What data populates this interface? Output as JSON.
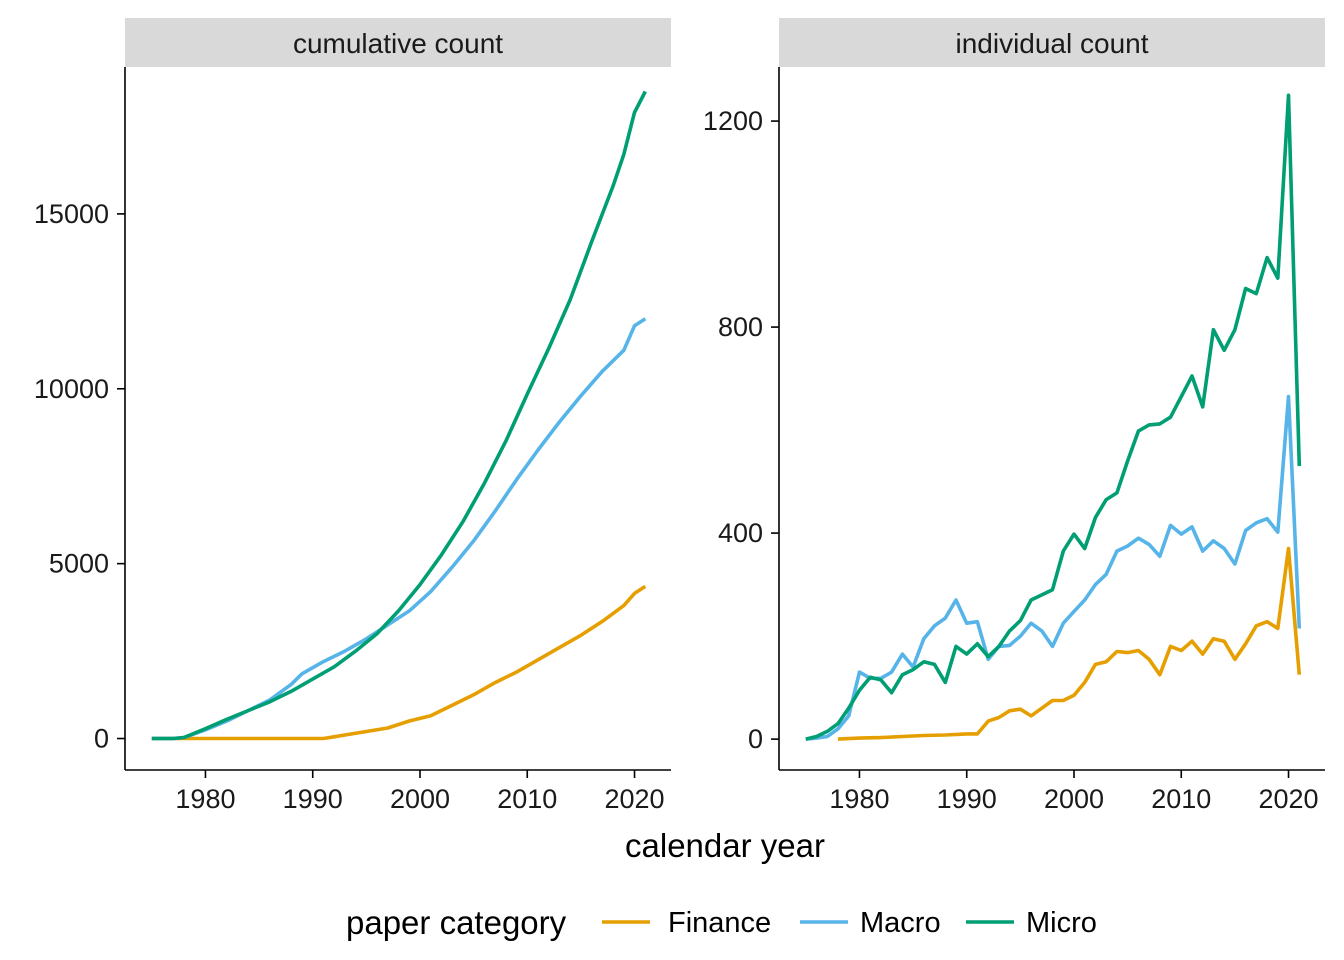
{
  "chart_data": {
    "type": "line",
    "xlabel": "calendar year",
    "legend": {
      "title": "paper category",
      "position": "bottom",
      "entries": [
        {
          "name": "Finance",
          "color": "#E69F00"
        },
        {
          "name": "Macro",
          "color": "#56B4E9"
        },
        {
          "name": "Micro",
          "color": "#009E73"
        }
      ]
    },
    "grid": false,
    "panels": [
      {
        "strip": "cumulative count",
        "xlim": [
          1972.5,
          2023.4
        ],
        "ylim": [
          -900,
          19200
        ],
        "x_ticks": [
          1980,
          1990,
          2000,
          2010,
          2020
        ],
        "y_ticks": [
          0,
          5000,
          10000,
          15000
        ],
        "series": [
          {
            "name": "Finance",
            "color": "#E69F00",
            "x": [
              1975,
              1978,
              1991,
              1992,
              1993,
              1995,
              1997,
              1999,
              2001,
              2003,
              2005,
              2007,
              2009,
              2011,
              2013,
              2015,
              2017,
              2019,
              2020,
              2021
            ],
            "y": [
              0,
              0,
              0,
              50,
              100,
              200,
              300,
              500,
              650,
              950,
              1250,
              1600,
              1900,
              2250,
              2600,
              2950,
              3350,
              3800,
              4150,
              4350
            ]
          },
          {
            "name": "Macro",
            "color": "#56B4E9",
            "x": [
              1975,
              1977,
              1978,
              1980,
              1982,
              1984,
              1986,
              1988,
              1989,
              1991,
              1993,
              1995,
              1997,
              1999,
              2001,
              2003,
              2005,
              2007,
              2009,
              2011,
              2013,
              2015,
              2017,
              2019,
              2020,
              2021
            ],
            "y": [
              0,
              0,
              30,
              250,
              500,
              800,
              1100,
              1550,
              1850,
              2200,
              2500,
              2850,
              3250,
              3650,
              4200,
              4900,
              5650,
              6500,
              7400,
              8250,
              9050,
              9800,
              10500,
              11100,
              11800,
              12000
            ]
          },
          {
            "name": "Micro",
            "color": "#009E73",
            "x": [
              1975,
              1977,
              1978,
              1980,
              1982,
              1984,
              1986,
              1988,
              1990,
              1992,
              1994,
              1996,
              1998,
              2000,
              2002,
              2004,
              2006,
              2008,
              2010,
              2012,
              2014,
              2016,
              2018,
              2019,
              2020,
              2021
            ],
            "y": [
              0,
              0,
              30,
              280,
              550,
              800,
              1050,
              1350,
              1700,
              2050,
              2500,
              3000,
              3650,
              4400,
              5250,
              6200,
              7300,
              8500,
              9850,
              11150,
              12550,
              14200,
              15800,
              16700,
              17900,
              18500
            ]
          }
        ]
      },
      {
        "strip": "individual count",
        "xlim": [
          1972.5,
          2023.4
        ],
        "ylim": [
          -60,
          1305
        ],
        "x_ticks": [
          1980,
          1990,
          2000,
          2010,
          2020
        ],
        "y_ticks": [
          0,
          400,
          800,
          1200
        ],
        "series": [
          {
            "name": "Finance",
            "color": "#E69F00",
            "x": [
              1978,
              1980,
              1982,
              1984,
              1986,
              1988,
              1990,
              1991,
              1992,
              1993,
              1994,
              1995,
              1996,
              1997,
              1998,
              1999,
              2000,
              2001,
              2002,
              2003,
              2004,
              2005,
              2006,
              2007,
              2008,
              2009,
              2010,
              2011,
              2012,
              2013,
              2014,
              2015,
              2016,
              2017,
              2018,
              2019,
              2020,
              2021
            ],
            "y": [
              0,
              2,
              3,
              5,
              7,
              8,
              10,
              10,
              35,
              42,
              55,
              58,
              45,
              60,
              75,
              75,
              85,
              110,
              145,
              150,
              170,
              168,
              172,
              155,
              125,
              180,
              172,
              190,
              165,
              195,
              190,
              155,
              185,
              220,
              228,
              215,
              370,
              125
            ]
          },
          {
            "name": "Macro",
            "color": "#56B4E9",
            "x": [
              1975,
              1976,
              1977,
              1978,
              1979,
              1980,
              1981,
              1982,
              1983,
              1984,
              1985,
              1986,
              1987,
              1988,
              1989,
              1990,
              1991,
              1992,
              1993,
              1994,
              1995,
              1996,
              1997,
              1998,
              1999,
              2000,
              2001,
              2002,
              2003,
              2004,
              2005,
              2006,
              2007,
              2008,
              2009,
              2010,
              2011,
              2012,
              2013,
              2014,
              2015,
              2016,
              2017,
              2018,
              2019,
              2020,
              2021
            ],
            "y": [
              0,
              2,
              5,
              20,
              45,
              130,
              118,
              118,
              130,
              165,
              140,
              195,
              220,
              235,
              270,
              225,
              228,
              155,
              180,
              182,
              200,
              225,
              210,
              180,
              225,
              248,
              270,
              300,
              320,
              365,
              375,
              390,
              378,
              355,
              415,
              398,
              412,
              365,
              385,
              370,
              340,
              405,
              420,
              428,
              402,
              665,
              215
            ]
          },
          {
            "name": "Micro",
            "color": "#009E73",
            "x": [
              1975,
              1976,
              1977,
              1978,
              1979,
              1980,
              1981,
              1982,
              1983,
              1984,
              1985,
              1986,
              1987,
              1988,
              1989,
              1990,
              1991,
              1992,
              1993,
              1994,
              1995,
              1996,
              1997,
              1998,
              1999,
              2000,
              2001,
              2002,
              2003,
              2004,
              2005,
              2006,
              2007,
              2008,
              2009,
              2010,
              2011,
              2012,
              2013,
              2014,
              2015,
              2016,
              2017,
              2018,
              2019,
              2020,
              2021
            ],
            "y": [
              0,
              5,
              15,
              30,
              60,
              95,
              120,
              115,
              90,
              125,
              135,
              150,
              145,
              110,
              180,
              165,
              185,
              160,
              180,
              210,
              230,
              270,
              280,
              290,
              365,
              398,
              370,
              430,
              465,
              478,
              540,
              598,
              610,
              612,
              625,
              665,
              705,
              645,
              795,
              755,
              795,
              875,
              865,
              935,
              895,
              1250,
              530
            ]
          }
        ]
      }
    ]
  }
}
